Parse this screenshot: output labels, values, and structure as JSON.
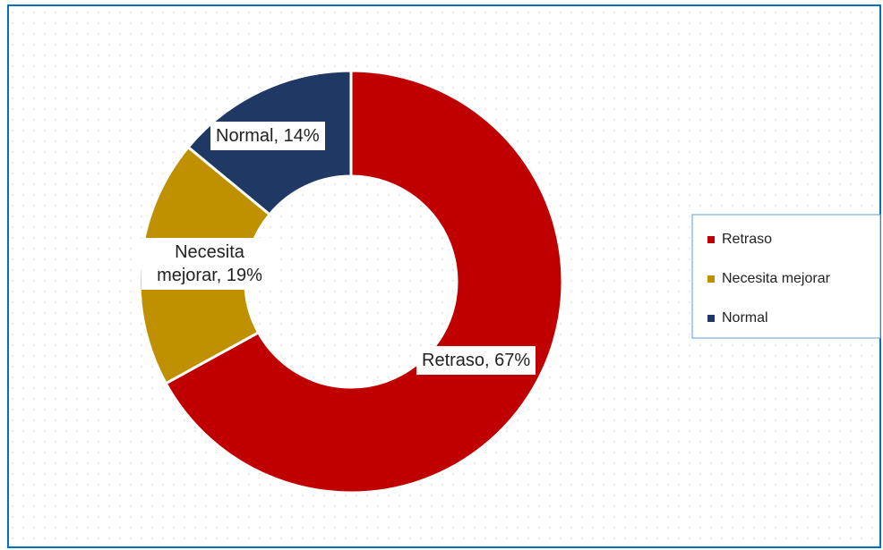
{
  "chart_data": {
    "type": "donut",
    "categories": [
      "Retraso",
      "Necesita mejorar",
      "Normal"
    ],
    "values": [
      67,
      19,
      14
    ],
    "value_labels": [
      "Retraso, 67%",
      "Necesita mejorar, 19%",
      "Normal, 14%"
    ],
    "colors": [
      "#c00000",
      "#bf9000",
      "#1f3864"
    ],
    "legend": "right"
  }
}
